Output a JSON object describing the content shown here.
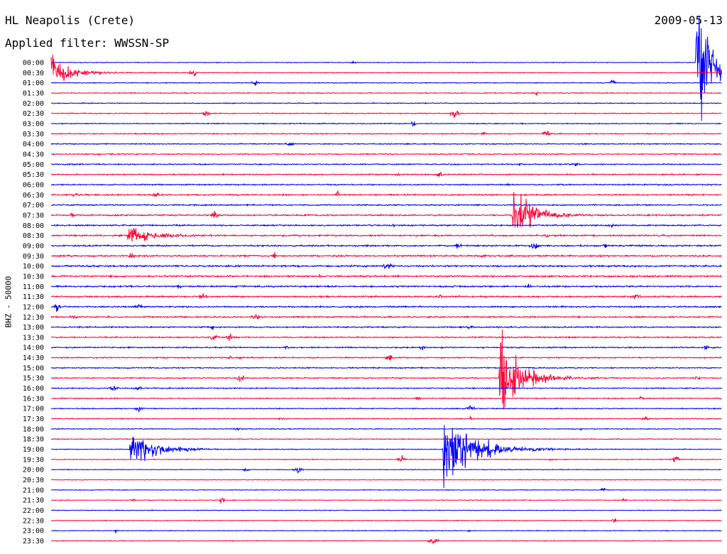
{
  "header": {
    "station": "HL Neapolis (Crete)",
    "date": "2009-05-13",
    "filter": "Applied filter: WWSSN-SP"
  },
  "chart_data": {
    "type": "line",
    "title": "HL Neapolis (Crete)",
    "date": "2009-05-13",
    "filter": "Applied filter: WWSSN-SP",
    "ylabel": "BHZ - 50000",
    "row_labels": [
      "00:00",
      "00:30",
      "01:00",
      "01:30",
      "02:00",
      "02:30",
      "03:00",
      "03:30",
      "04:00",
      "04:30",
      "05:00",
      "05:30",
      "06:00",
      "06:30",
      "07:00",
      "07:30",
      "08:00",
      "08:30",
      "09:00",
      "09:30",
      "10:00",
      "10:30",
      "11:00",
      "11:30",
      "12:00",
      "12:30",
      "13:00",
      "13:30",
      "14:00",
      "14:30",
      "15:00",
      "15:30",
      "16:00",
      "16:30",
      "17:00",
      "17:30",
      "18:00",
      "18:30",
      "19:00",
      "19:30",
      "20:00",
      "20:30",
      "21:00",
      "21:30",
      "22:00",
      "22:30",
      "23:00",
      "23:30"
    ],
    "colors": [
      "#0000ff",
      "#ff0033"
    ],
    "grid": false,
    "events": [
      {
        "row": 0,
        "minute": 28.8,
        "amplitude": 88,
        "duration": 2.4
      },
      {
        "row": 15,
        "minute": 20.6,
        "amplitude": 42,
        "duration": 2.2
      },
      {
        "row": 17,
        "minute": 3.4,
        "amplitude": 13,
        "duration": 2.4
      },
      {
        "row": 31,
        "minute": 20.0,
        "amplitude": 55,
        "duration": 2.6
      },
      {
        "row": 38,
        "minute": 3.5,
        "amplitude": 24,
        "duration": 2.8
      },
      {
        "row": 38,
        "minute": 17.5,
        "amplitude": 46,
        "duration": 3.6
      }
    ]
  }
}
